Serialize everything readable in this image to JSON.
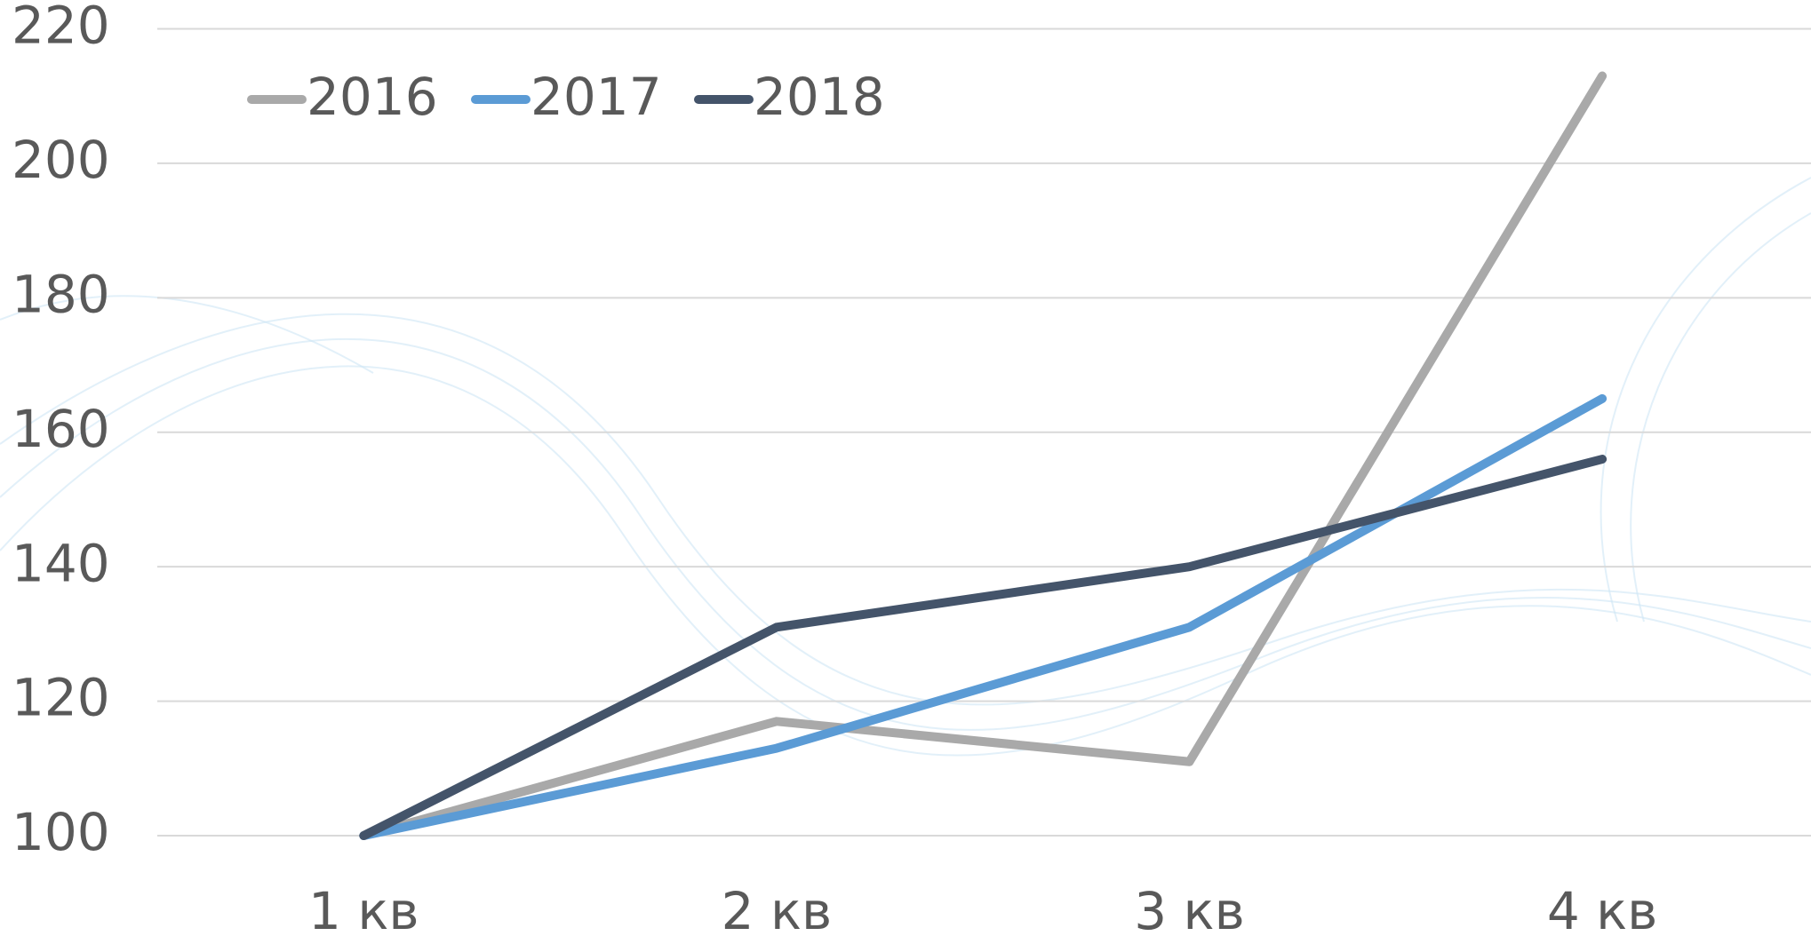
{
  "chart_data": {
    "type": "line",
    "categories": [
      "1 кв",
      "2 кв",
      "3 кв",
      "4 кв"
    ],
    "series": [
      {
        "name": "2016",
        "color": "#a9a9a9",
        "values": [
          100,
          117,
          111,
          213
        ]
      },
      {
        "name": "2017",
        "color": "#5b9bd5",
        "values": [
          100,
          113,
          131,
          165
        ]
      },
      {
        "name": "2018",
        "color": "#44546a",
        "values": [
          100,
          131,
          140,
          156
        ]
      }
    ],
    "ylim": [
      100,
      220
    ],
    "yticks": [
      100,
      120,
      140,
      160,
      180,
      200,
      220
    ],
    "grid": true,
    "legend": "top-left"
  }
}
